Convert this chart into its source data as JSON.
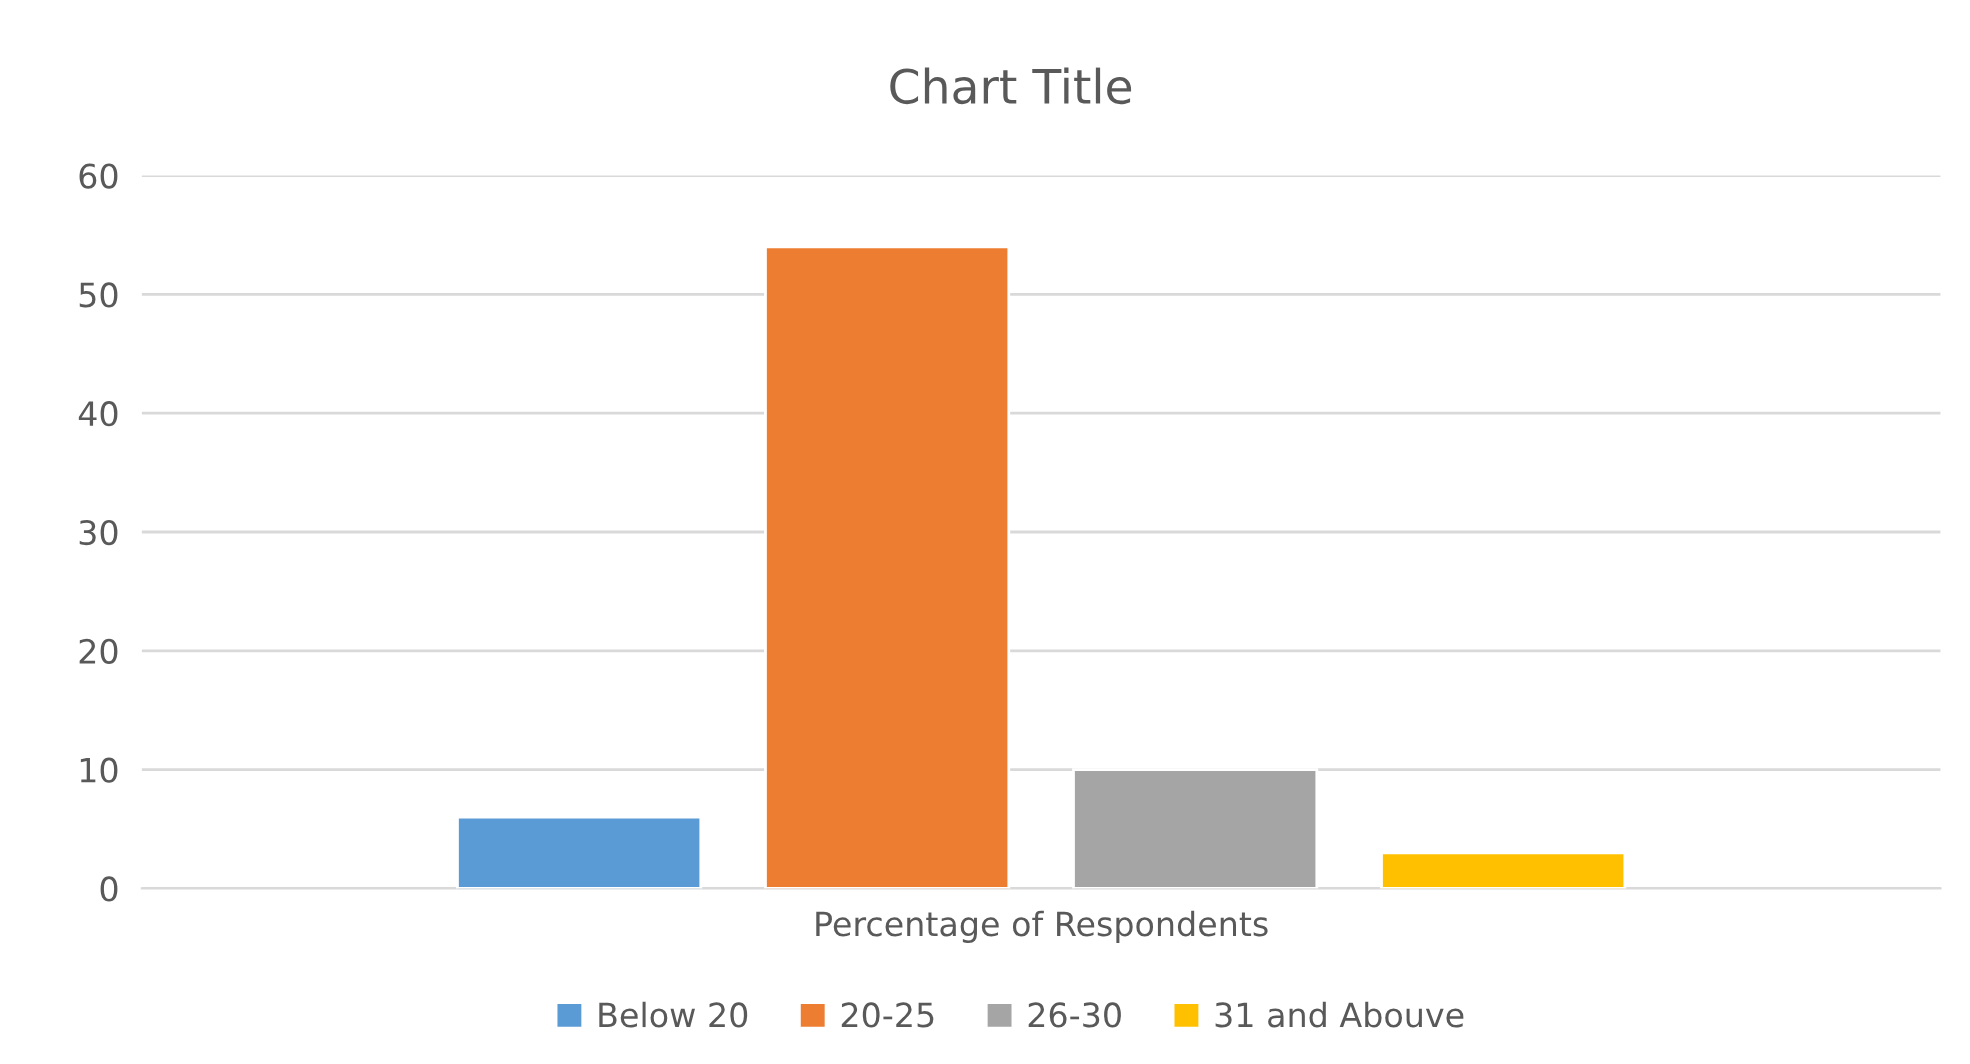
{
  "chart_data": {
    "type": "bar",
    "title": "Chart Title",
    "categories": [
      "Percentage of Respondents"
    ],
    "series": [
      {
        "name": "Below 20",
        "color": "#5b9bd5",
        "values": [
          6
        ]
      },
      {
        "name": "20-25",
        "color": "#ed7d31",
        "values": [
          54
        ]
      },
      {
        "name": "26-30",
        "color": "#a5a5a5",
        "values": [
          10
        ]
      },
      {
        "name": "31 and Abouve",
        "color": "#ffc000",
        "values": [
          3
        ]
      }
    ],
    "ylim": [
      0,
      60
    ],
    "yticks": [
      0,
      10,
      20,
      30,
      40,
      50,
      60
    ],
    "grid": "y",
    "legend": "bottom"
  }
}
